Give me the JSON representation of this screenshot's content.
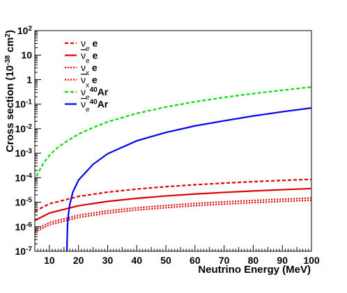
{
  "chart_data": {
    "type": "line",
    "title": "",
    "xlabel": "Neutrino Energy (MeV)",
    "ylabel_parts": {
      "pre": "Cross section (10",
      "exp": "-38",
      "mid": " cm",
      "exp2": "2",
      "post": ")"
    },
    "xlim": [
      5,
      100
    ],
    "ylim": [
      1e-07,
      100
    ],
    "yscale": "log",
    "grid": false,
    "legend_position": "top-left",
    "x_ticks": [
      10,
      20,
      30,
      40,
      50,
      60,
      70,
      80,
      90,
      100
    ],
    "x_tick_labels": [
      "10",
      "20",
      "30",
      "40",
      "50",
      "60",
      "70",
      "80",
      "90",
      "100"
    ],
    "y_ticks": [
      {
        "value": 100,
        "base": "10",
        "exp": "2"
      },
      {
        "value": 10,
        "base": "10",
        "exp": ""
      },
      {
        "value": 1,
        "base": "1",
        "exp": ""
      },
      {
        "value": 0.1,
        "base": "10",
        "exp": "-1"
      },
      {
        "value": 0.01,
        "base": "10",
        "exp": "-2"
      },
      {
        "value": 0.001,
        "base": "10",
        "exp": "-3"
      },
      {
        "value": 0.0001,
        "base": "10",
        "exp": "-4"
      },
      {
        "value": 1e-05,
        "base": "10",
        "exp": "-5"
      },
      {
        "value": 1e-06,
        "base": "10",
        "exp": "-6"
      },
      {
        "value": 1e-07,
        "base": "10",
        "exp": "-7"
      }
    ],
    "series": [
      {
        "label_base": "ν",
        "label_sub": "e",
        "label_sup": "",
        "label_rest": " e",
        "bar": false,
        "color": "#dd0000",
        "style": "dashed",
        "x": [
          5,
          10,
          20,
          30,
          40,
          50,
          60,
          70,
          80,
          90,
          100
        ],
        "y": [
          4.3e-06,
          8.6e-06,
          1.72e-05,
          2.58e-05,
          3.44e-05,
          4.3e-05,
          5.16e-05,
          6.02e-05,
          6.88e-05,
          7.74e-05,
          8.6e-05
        ]
      },
      {
        "label_base": "ν",
        "label_sub": "e",
        "label_sup": "",
        "label_rest": " e",
        "bar": true,
        "color": "#dd0000",
        "style": "solid",
        "x": [
          5,
          10,
          20,
          30,
          40,
          50,
          60,
          70,
          80,
          90,
          100
        ],
        "y": [
          1.8e-06,
          3.6e-06,
          7.2e-06,
          1.08e-05,
          1.44e-05,
          1.8e-05,
          2.16e-05,
          2.52e-05,
          2.88e-05,
          3.24e-05,
          3.6e-05
        ]
      },
      {
        "label_base": "ν",
        "label_sub": "x",
        "label_sup": "",
        "label_rest": " e",
        "bar": false,
        "color": "#dd0000",
        "style": "dotted",
        "x": [
          5,
          10,
          20,
          30,
          40,
          50,
          60,
          70,
          80,
          90,
          100
        ],
        "y": [
          7.4e-07,
          1.48e-06,
          2.96e-06,
          4.44e-06,
          5.92e-06,
          7.4e-06,
          8.88e-06,
          1.036e-05,
          1.184e-05,
          1.332e-05,
          1.48e-05
        ]
      },
      {
        "label_base": "ν",
        "label_sub": "x",
        "label_sup": "",
        "label_rest": " e",
        "bar": true,
        "color": "#dd0000",
        "style": "dotted",
        "x": [
          5,
          10,
          20,
          30,
          40,
          50,
          60,
          70,
          80,
          90,
          100
        ],
        "y": [
          6e-07,
          1.2e-06,
          2.4e-06,
          3.6e-06,
          4.8e-06,
          6e-06,
          7.2e-06,
          8.4e-06,
          9.6e-06,
          1.08e-05,
          1.2e-05
        ]
      },
      {
        "label_base": "ν",
        "label_sub": "e",
        "label_sup": "40",
        "label_rest": "Ar",
        "bar": false,
        "color": "#00dd00",
        "style": "dashed",
        "x": [
          5,
          6,
          8,
          10,
          12,
          15,
          20,
          25,
          30,
          40,
          50,
          60,
          70,
          80,
          90,
          100
        ],
        "y": [
          7e-05,
          0.00015,
          0.0004,
          0.0008,
          0.0014,
          0.0026,
          0.006,
          0.011,
          0.019,
          0.042,
          0.077,
          0.125,
          0.19,
          0.27,
          0.37,
          0.5
        ]
      },
      {
        "label_base": "ν",
        "label_sub": "e",
        "label_sup": "40",
        "label_rest": "Ar",
        "bar": true,
        "color": "#0000ee",
        "style": "solid",
        "x": [
          16.0,
          16.2,
          16.5,
          17,
          18,
          20,
          25,
          30,
          40,
          50,
          60,
          70,
          80,
          90,
          100
        ],
        "y": [
          1e-07,
          1e-06,
          3e-06,
          8e-06,
          2.5e-05,
          8e-05,
          0.00035,
          0.00095,
          0.0032,
          0.007,
          0.013,
          0.021,
          0.033,
          0.049,
          0.07
        ]
      }
    ]
  }
}
